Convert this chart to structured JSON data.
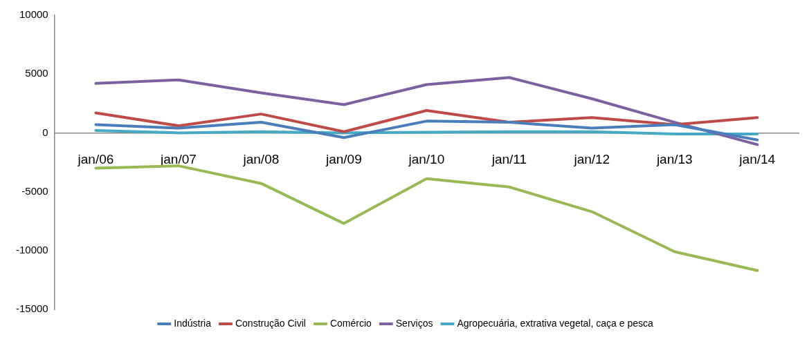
{
  "chart_data": {
    "type": "line",
    "categories": [
      "jan/06",
      "jan/07",
      "jan/08",
      "jan/09",
      "jan/10",
      "jan/11",
      "jan/12",
      "jan/13",
      "jan/14"
    ],
    "series": [
      {
        "name": "Indústria",
        "color": "#4a7ebb",
        "values": [
          700,
          400,
          900,
          -400,
          1000,
          900,
          400,
          700,
          -600
        ]
      },
      {
        "name": "Construção Civil",
        "color": "#be4b48",
        "values": [
          1700,
          600,
          1600,
          100,
          1900,
          900,
          1300,
          700,
          1300
        ]
      },
      {
        "name": "Comércio",
        "color": "#98b954",
        "values": [
          -3000,
          -2800,
          -4300,
          -7700,
          -3900,
          -4600,
          -6700,
          -10100,
          -11700
        ]
      },
      {
        "name": "Serviços",
        "color": "#7d60a0",
        "values": [
          4200,
          4500,
          3400,
          2400,
          4100,
          4700,
          2900,
          900,
          -1000
        ]
      },
      {
        "name": "Agropecuária, extrativa vegetal, caça e pesca",
        "color": "#46aac5",
        "values": [
          200,
          0,
          100,
          0,
          50,
          100,
          100,
          -100,
          -100
        ]
      }
    ],
    "ylim": [
      -15000,
      10000
    ],
    "yticks": [
      -15000,
      -10000,
      -5000,
      0,
      5000,
      10000
    ],
    "grid": false,
    "legend": "bottom",
    "marker": "none",
    "line_style": "solid"
  }
}
